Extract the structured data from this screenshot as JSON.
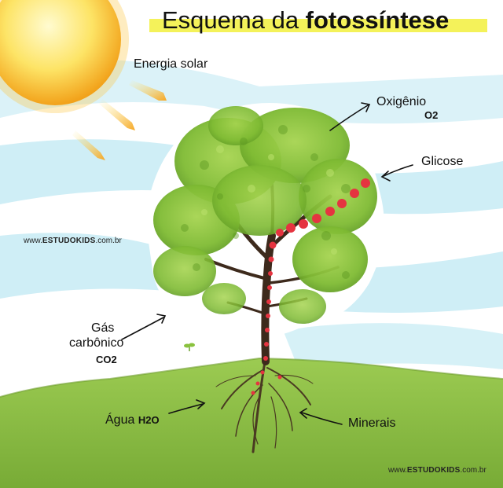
{
  "title": {
    "regular": "Esquema da ",
    "bold": "fotossíntese"
  },
  "labels": {
    "energia": "Energia solar",
    "oxigenio": "Oxigênio",
    "oxigenio_formula": "O2",
    "glicose": "Glicose",
    "gas_line1": "Gás",
    "gas_line2": "carbônico",
    "gas_formula": "CO2",
    "agua": "Água",
    "agua_formula": "H2O",
    "minerais": "Minerais"
  },
  "branding": {
    "prefix": "www.",
    "name": "ESTUDOKIDS",
    "suffix": ".com.br"
  },
  "colors": {
    "sky": "#cfeef6",
    "sun_core": "#fff6a0",
    "sun_edge": "#f2a21a",
    "grass": "#8cbf45",
    "foliage": "#86c23a",
    "trunk": "#3d2a1c",
    "dots": "#e53440",
    "title_highlight": "#f4f25a"
  }
}
